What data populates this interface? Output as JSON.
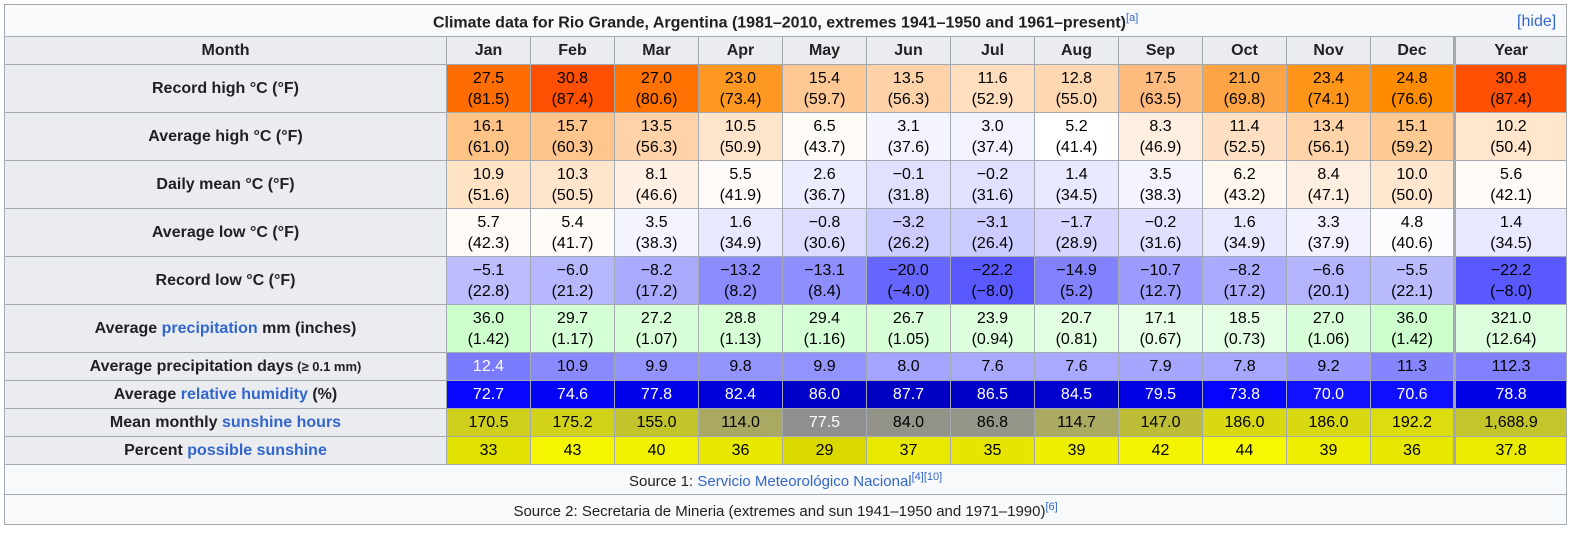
{
  "caption": {
    "title": "Climate data for Rio Grande, Argentina (1981–2010, extremes 1941–1950 and 1961–present)",
    "ref": "[a]",
    "hide": "[hide]"
  },
  "header": {
    "month_label": "Month",
    "months": [
      "Jan",
      "Feb",
      "Mar",
      "Apr",
      "May",
      "Jun",
      "Jul",
      "Aug",
      "Sep",
      "Oct",
      "Nov",
      "Dec"
    ],
    "year_label": "Year"
  },
  "rows": [
    {
      "pre": "Record high °C (°F)",
      "link": "",
      "post": "",
      "note": "",
      "two": true,
      "cells": [
        [
          "27.5",
          "(81.5)",
          "#ff6d00",
          "#000"
        ],
        [
          "30.8",
          "(87.4)",
          "#ff4f00",
          "#000"
        ],
        [
          "27.0",
          "(80.6)",
          "#ff7100",
          "#000"
        ],
        [
          "23.0",
          "(73.4)",
          "#ff9822",
          "#000"
        ],
        [
          "15.4",
          "(59.7)",
          "#ffc894",
          "#000"
        ],
        [
          "13.5",
          "(56.3)",
          "#ffd3a7",
          "#000"
        ],
        [
          "11.6",
          "(52.9)",
          "#ffdfbf",
          "#000"
        ],
        [
          "12.8",
          "(55.0)",
          "#ffd7b0",
          "#000"
        ],
        [
          "17.5",
          "(63.5)",
          "#ffbb7d",
          "#000"
        ],
        [
          "21.0",
          "(69.8)",
          "#ffa444",
          "#000"
        ],
        [
          "23.4",
          "(74.1)",
          "#ff9519",
          "#000"
        ],
        [
          "24.8",
          "(76.6)",
          "#ff8c00",
          "#000"
        ],
        [
          "30.8",
          "(87.4)",
          "#ff4f00",
          "#000"
        ]
      ]
    },
    {
      "pre": "Average high °C (°F)",
      "link": "",
      "post": "",
      "note": "",
      "two": true,
      "cells": [
        [
          "16.1",
          "(61.0)",
          "#ffc386",
          "#000"
        ],
        [
          "15.7",
          "(60.3)",
          "#ffc58c",
          "#000"
        ],
        [
          "13.5",
          "(56.3)",
          "#ffd3a7",
          "#000"
        ],
        [
          "10.5",
          "(50.9)",
          "#ffe5cb",
          "#000"
        ],
        [
          "6.5",
          "(43.7)",
          "#fffbf6",
          "#000"
        ],
        [
          "3.1",
          "(37.6)",
          "#f4f4ff",
          "#000"
        ],
        [
          "3.0",
          "(37.4)",
          "#f3f3ff",
          "#000"
        ],
        [
          "5.2",
          "(41.4)",
          "#fffffd",
          "#000"
        ],
        [
          "8.3",
          "(46.9)",
          "#ffefe1",
          "#000"
        ],
        [
          "11.4",
          "(52.5)",
          "#ffe0c2",
          "#000"
        ],
        [
          "13.4",
          "(56.1)",
          "#ffd4a9",
          "#000"
        ],
        [
          "15.1",
          "(59.2)",
          "#ffc993",
          "#000"
        ],
        [
          "10.2",
          "(50.4)",
          "#ffe6cd",
          "#000"
        ]
      ]
    },
    {
      "pre": "Daily mean °C (°F)",
      "link": "",
      "post": "",
      "note": "",
      "two": true,
      "cells": [
        [
          "10.9",
          "(51.6)",
          "#ffe3c5",
          "#000"
        ],
        [
          "10.3",
          "(50.5)",
          "#ffe5cb",
          "#000"
        ],
        [
          "8.1",
          "(46.6)",
          "#fff0e3",
          "#000"
        ],
        [
          "5.5",
          "(41.9)",
          "#fffbf8",
          "#000"
        ],
        [
          "2.6",
          "(36.7)",
          "#ececff",
          "#000"
        ],
        [
          "−0.1",
          "(31.8)",
          "#e0e0ff",
          "#000"
        ],
        [
          "−0.2",
          "(31.6)",
          "#e0e0ff",
          "#000"
        ],
        [
          "1.4",
          "(34.5)",
          "#e8e8ff",
          "#000"
        ],
        [
          "3.5",
          "(38.3)",
          "#f4f4ff",
          "#000"
        ],
        [
          "6.2",
          "(43.2)",
          "#fff7f0",
          "#000"
        ],
        [
          "8.4",
          "(47.1)",
          "#ffefe0",
          "#000"
        ],
        [
          "10.0",
          "(50.0)",
          "#ffe6ce",
          "#000"
        ],
        [
          "5.6",
          "(42.1)",
          "#fffaf5",
          "#000"
        ]
      ]
    },
    {
      "pre": "Average low °C (°F)",
      "link": "",
      "post": "",
      "note": "",
      "two": true,
      "cells": [
        [
          "5.7",
          "(42.3)",
          "#fffaf5",
          "#000"
        ],
        [
          "5.4",
          "(41.7)",
          "#fffbf7",
          "#000"
        ],
        [
          "3.5",
          "(38.3)",
          "#f4f4ff",
          "#000"
        ],
        [
          "1.6",
          "(34.9)",
          "#e8e8ff",
          "#000"
        ],
        [
          "−0.8",
          "(30.6)",
          "#dcdcff",
          "#000"
        ],
        [
          "−3.2",
          "(26.2)",
          "#cbcbff",
          "#000"
        ],
        [
          "−3.1",
          "(26.4)",
          "#cbcbff",
          "#000"
        ],
        [
          "−1.7",
          "(28.9)",
          "#d5d5ff",
          "#000"
        ],
        [
          "−0.2",
          "(31.6)",
          "#dfdfff",
          "#000"
        ],
        [
          "1.6",
          "(34.9)",
          "#e8e8ff",
          "#000"
        ],
        [
          "3.3",
          "(37.9)",
          "#f2f2ff",
          "#000"
        ],
        [
          "4.8",
          "(40.6)",
          "#fcfcff",
          "#000"
        ],
        [
          "1.4",
          "(34.5)",
          "#e8e8ff",
          "#000"
        ]
      ]
    },
    {
      "pre": "Record low °C (°F)",
      "link": "",
      "post": "",
      "note": "",
      "two": true,
      "cells": [
        [
          "−5.1",
          "(22.8)",
          "#bcbcff",
          "#000"
        ],
        [
          "−6.0",
          "(21.2)",
          "#b7b7ff",
          "#000"
        ],
        [
          "−8.2",
          "(17.2)",
          "#aaaaff",
          "#000"
        ],
        [
          "−13.2",
          "(8.2)",
          "#8c8cff",
          "#000"
        ],
        [
          "−13.1",
          "(8.4)",
          "#8e8eff",
          "#000"
        ],
        [
          "−20.0",
          "(−4.0)",
          "#6666ff",
          "#000"
        ],
        [
          "−22.2",
          "(−8.0)",
          "#5959ff",
          "#000"
        ],
        [
          "−14.9",
          "(5.2)",
          "#8282ff",
          "#000"
        ],
        [
          "−10.7",
          "(12.7)",
          "#9c9cff",
          "#000"
        ],
        [
          "−8.2",
          "(17.2)",
          "#aaaaff",
          "#000"
        ],
        [
          "−6.6",
          "(20.1)",
          "#b4b4ff",
          "#000"
        ],
        [
          "−5.5",
          "(22.1)",
          "#babaff",
          "#000"
        ],
        [
          "−22.2",
          "(−8.0)",
          "#5959ff",
          "#000"
        ]
      ]
    },
    {
      "pre": "Average ",
      "link": "precipitation",
      "post": " mm (inches)",
      "note": "",
      "two": true,
      "cells": [
        [
          "36.0",
          "(1.42)",
          "#ccffcc",
          "#000"
        ],
        [
          "29.7",
          "(1.17)",
          "#d5ffd5",
          "#000"
        ],
        [
          "27.2",
          "(1.07)",
          "#d8ffd8",
          "#000"
        ],
        [
          "28.8",
          "(1.13)",
          "#d6ffd6",
          "#000"
        ],
        [
          "29.4",
          "(1.16)",
          "#d5ffd5",
          "#000"
        ],
        [
          "26.7",
          "(1.05)",
          "#d9ffd9",
          "#000"
        ],
        [
          "23.9",
          "(0.94)",
          "#ddffdd",
          "#000"
        ],
        [
          "20.7",
          "(0.81)",
          "#e2ffe2",
          "#000"
        ],
        [
          "17.1",
          "(0.67)",
          "#e7ffe7",
          "#000"
        ],
        [
          "18.5",
          "(0.73)",
          "#e5ffe5",
          "#000"
        ],
        [
          "27.0",
          "(1.06)",
          "#d8ffd8",
          "#000"
        ],
        [
          "36.0",
          "(1.42)",
          "#ccffcc",
          "#000"
        ],
        [
          "321.0",
          "(12.64)",
          "#ddffdd",
          "#000"
        ]
      ]
    },
    {
      "pre": "Average precipitation days",
      "link": "",
      "post": "",
      "note": " (≥ 0.1 mm)",
      "two": false,
      "cells": [
        [
          "12.4",
          "",
          "#7b7bff",
          "#fff"
        ],
        [
          "10.9",
          "",
          "#8a8aff",
          "#000"
        ],
        [
          "9.9",
          "",
          "#9393ff",
          "#000"
        ],
        [
          "9.8",
          "",
          "#9494ff",
          "#000"
        ],
        [
          "9.9",
          "",
          "#9393ff",
          "#000"
        ],
        [
          "8.0",
          "",
          "#a5a5ff",
          "#000"
        ],
        [
          "7.6",
          "",
          "#a9a9ff",
          "#000"
        ],
        [
          "7.6",
          "",
          "#a9a9ff",
          "#000"
        ],
        [
          "7.9",
          "",
          "#a6a6ff",
          "#000"
        ],
        [
          "7.8",
          "",
          "#a7a7ff",
          "#000"
        ],
        [
          "9.2",
          "",
          "#9999ff",
          "#000"
        ],
        [
          "11.3",
          "",
          "#8585ff",
          "#000"
        ],
        [
          "112.3",
          "",
          "#8181ff",
          "#000"
        ]
      ]
    },
    {
      "pre": "Average ",
      "link": "relative humidity",
      "post": " (%)",
      "note": "",
      "two": false,
      "cells": [
        [
          "72.7",
          "",
          "#0707ff",
          "#fff"
        ],
        [
          "74.6",
          "",
          "#0404f6",
          "#fff"
        ],
        [
          "77.8",
          "",
          "#0101e9",
          "#fff"
        ],
        [
          "82.4",
          "",
          "#0000d8",
          "#fff"
        ],
        [
          "86.0",
          "",
          "#0000c9",
          "#fff"
        ],
        [
          "87.7",
          "",
          "#0000c2",
          "#fff"
        ],
        [
          "86.5",
          "",
          "#0000c7",
          "#fff"
        ],
        [
          "84.5",
          "",
          "#0000cf",
          "#fff"
        ],
        [
          "79.5",
          "",
          "#0000e3",
          "#fff"
        ],
        [
          "73.8",
          "",
          "#0505f9",
          "#fff"
        ],
        [
          "70.0",
          "",
          "#1111ff",
          "#fff"
        ],
        [
          "70.6",
          "",
          "#0f0fff",
          "#fff"
        ],
        [
          "78.8",
          "",
          "#0000e5",
          "#fff"
        ]
      ]
    },
    {
      "pre": "Mean monthly ",
      "link": "sunshine hours",
      "post": "",
      "note": "",
      "two": false,
      "cells": [
        [
          "170.5",
          "",
          "#cfcf1d",
          "#000"
        ],
        [
          "175.2",
          "",
          "#d2d21a",
          "#000"
        ],
        [
          "155.0",
          "",
          "#c3c32c",
          "#000"
        ],
        [
          "114.0",
          "",
          "#a9a963",
          "#000"
        ],
        [
          "77.5",
          "",
          "#8f8f8f",
          "#fff"
        ],
        [
          "84.0",
          "",
          "#939389",
          "#000"
        ],
        [
          "86.8",
          "",
          "#95958a",
          "#000"
        ],
        [
          "114.7",
          "",
          "#aaaa63",
          "#000"
        ],
        [
          "147.0",
          "",
          "#bdbd37",
          "#000"
        ],
        [
          "186.0",
          "",
          "#d9d912",
          "#000"
        ],
        [
          "186.0",
          "",
          "#d9d912",
          "#000"
        ],
        [
          "192.2",
          "",
          "#dcdc0e",
          "#000"
        ],
        [
          "1,688.9",
          "",
          "#c4c42b",
          "#000"
        ]
      ]
    },
    {
      "pre": "Percent ",
      "link": "possible sunshine",
      "post": "",
      "note": "",
      "two": false,
      "cells": [
        [
          "33",
          "",
          "#e1e100",
          "#000"
        ],
        [
          "43",
          "",
          "#f6f600",
          "#000"
        ],
        [
          "40",
          "",
          "#f0f000",
          "#000"
        ],
        [
          "36",
          "",
          "#e7e700",
          "#000"
        ],
        [
          "29",
          "",
          "#d9d900",
          "#000"
        ],
        [
          "37",
          "",
          "#e9e900",
          "#000"
        ],
        [
          "35",
          "",
          "#e5e500",
          "#000"
        ],
        [
          "39",
          "",
          "#eeee00",
          "#000"
        ],
        [
          "42",
          "",
          "#f4f400",
          "#000"
        ],
        [
          "44",
          "",
          "#f8f800",
          "#000"
        ],
        [
          "39",
          "",
          "#eeee00",
          "#000"
        ],
        [
          "36",
          "",
          "#e7e700",
          "#000"
        ],
        [
          "37.8",
          "",
          "#ebeb00",
          "#000"
        ]
      ]
    }
  ],
  "sources": {
    "source1_prefix": "Source 1: ",
    "source1_link": "Servicio Meteorológico Nacional",
    "source1_refs": "[4][10]",
    "source2_text": "Source 2: Secretaria de Mineria (extremes and sun 1941–1950 and 1971–1990)",
    "source2_refs": "[6]"
  }
}
